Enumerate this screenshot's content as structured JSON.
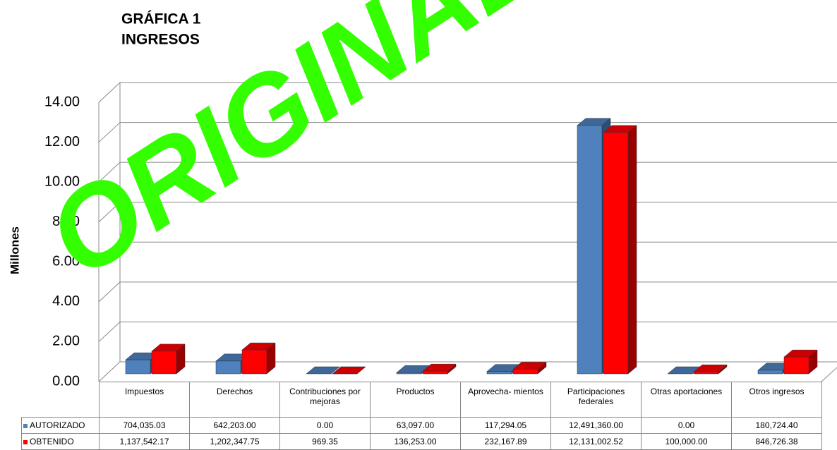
{
  "chart_data": {
    "type": "bar3d",
    "title": "GRÁFICA 1",
    "subtitle": "INGRESOS",
    "watermark": "ORIGINAL",
    "y_label": "Millones",
    "categories": [
      "Impuestos",
      "Derechos",
      "Contribuciones por mejoras",
      "Productos",
      "Aprovecha- mientos",
      "Participaciones federales",
      "Otras aportaciones",
      "Otros ingresos"
    ],
    "series": [
      {
        "name": "AUTORIZADO",
        "color": "#4f81bd",
        "values": [
          0.70403503,
          0.642203,
          0,
          0.063097,
          0.11729405,
          12.49136,
          0,
          0.1807244
        ],
        "value_labels": [
          "704,035.03",
          "642,203.00",
          "0.00",
          "63,097.00",
          "117,294.05",
          "12,491,360.00",
          "0.00",
          "180,724.40"
        ]
      },
      {
        "name": "OBTENIDO",
        "color": "#ff0000",
        "values": [
          1.13754217,
          1.20234775,
          0.00096935,
          0.136253,
          0.23216789,
          12.13100252,
          0.1,
          0.84672638
        ],
        "value_labels": [
          "1,137,542.17",
          "1,202,347.75",
          "969.35",
          "136,253.00",
          "232,167.89",
          "12,131,002.52",
          "100,000.00",
          "846,726.38"
        ]
      }
    ],
    "ylim": [
      0,
      14
    ],
    "yticks": [
      {
        "value": 0,
        "label": "0.00"
      },
      {
        "value": 2,
        "label": "2.00"
      },
      {
        "value": 4,
        "label": "4.00"
      },
      {
        "value": 6,
        "label": "6.00"
      },
      {
        "value": 8,
        "label": "8.00"
      },
      {
        "value": 10,
        "label": "10.00"
      },
      {
        "value": 12,
        "label": "12.00"
      },
      {
        "value": 14,
        "label": "14.00"
      }
    ],
    "grid": true
  }
}
